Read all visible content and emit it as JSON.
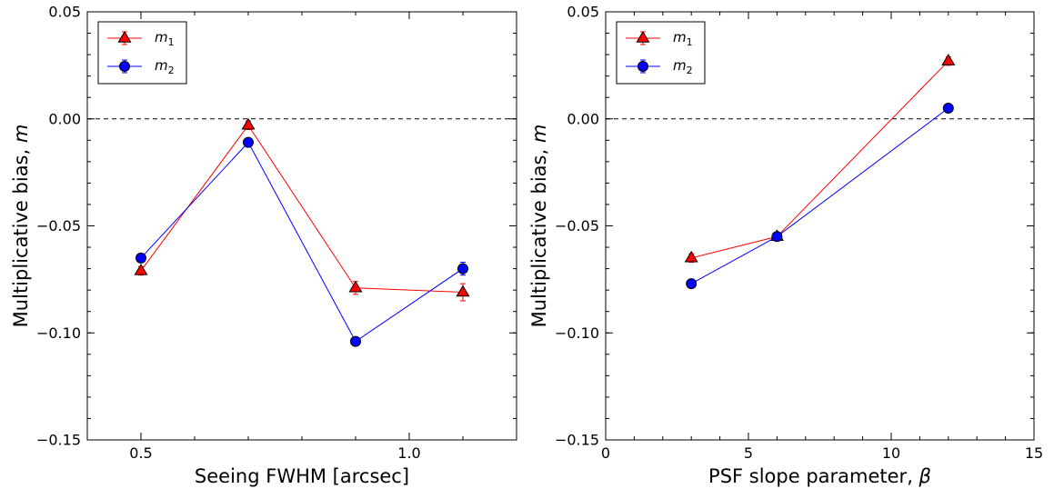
{
  "chart_data": [
    {
      "type": "line",
      "xlabel": "Seeing FWHM [arcsec]",
      "ylabel": "Multiplicative bias, m",
      "xlim": [
        0.4,
        1.2
      ],
      "ylim": [
        -0.15,
        0.05
      ],
      "xticks": [
        0.5,
        1.0
      ],
      "xtick_labels": [
        "0.5",
        "1.0"
      ],
      "yticks": [
        0.05,
        0.0,
        -0.05,
        -0.1,
        -0.15
      ],
      "ytick_labels": [
        "0.05",
        "0.00",
        "−0.05",
        "−0.10",
        "−0.15"
      ],
      "reference_line": {
        "y": 0.0,
        "style": "dashed"
      },
      "legend": {
        "position": "top-left"
      },
      "grid": false,
      "series": [
        {
          "name": "m1",
          "color": "#ff0000",
          "marker": "triangle",
          "x": [
            0.5,
            0.7,
            0.9,
            1.1
          ],
          "y": [
            -0.071,
            -0.003,
            -0.079,
            -0.081
          ],
          "err": [
            0.002,
            0.002,
            0.003,
            0.004
          ]
        },
        {
          "name": "m2",
          "color": "#0000ff",
          "marker": "circle",
          "x": [
            0.5,
            0.7,
            0.9,
            1.1
          ],
          "y": [
            -0.065,
            -0.011,
            -0.104,
            -0.07
          ],
          "err": [
            0.002,
            0.002,
            0.002,
            0.003
          ]
        }
      ]
    },
    {
      "type": "line",
      "xlabel": "PSF slope parameter, β",
      "ylabel": "Multiplicative bias, m",
      "xlim": [
        0,
        15
      ],
      "ylim": [
        -0.15,
        0.05
      ],
      "xticks": [
        0,
        5,
        10,
        15
      ],
      "xtick_labels": [
        "0",
        "5",
        "10",
        "15"
      ],
      "yticks": [
        0.05,
        0.0,
        -0.05,
        -0.1,
        -0.15
      ],
      "ytick_labels": [
        "0.05",
        "0.00",
        "−0.05",
        "−0.10",
        "−0.15"
      ],
      "reference_line": {
        "y": 0.0,
        "style": "dashed"
      },
      "legend": {
        "position": "top-left"
      },
      "grid": false,
      "series": [
        {
          "name": "m1",
          "color": "#ff0000",
          "marker": "triangle",
          "x": [
            3,
            6,
            12
          ],
          "y": [
            -0.065,
            -0.055,
            0.027
          ],
          "err": [
            0.002,
            0.002,
            0.002
          ]
        },
        {
          "name": "m2",
          "color": "#0000ff",
          "marker": "circle",
          "x": [
            3,
            6,
            12
          ],
          "y": [
            -0.077,
            -0.055,
            0.005
          ],
          "err": [
            0.002,
            0.002,
            0.002
          ]
        }
      ]
    }
  ]
}
